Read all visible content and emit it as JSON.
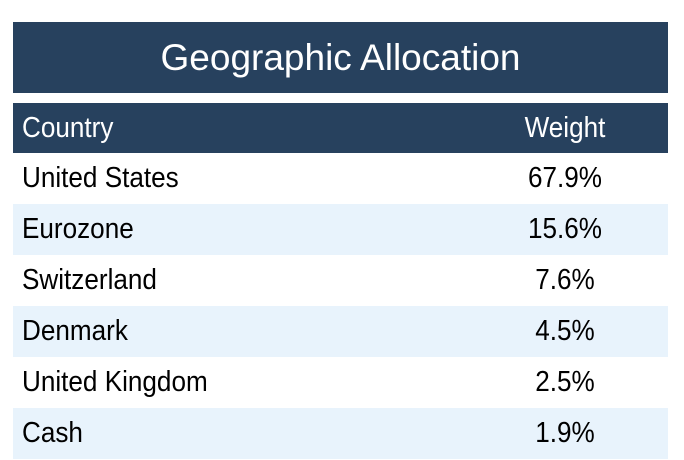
{
  "table": {
    "title": "Geographic Allocation",
    "columns": [
      "Country",
      "Weight"
    ],
    "rows": [
      [
        "United States",
        "67.9%"
      ],
      [
        "Eurozone",
        "15.6%"
      ],
      [
        "Switzerland",
        "7.6%"
      ],
      [
        "Denmark",
        "4.5%"
      ],
      [
        "United Kingdom",
        "2.5%"
      ],
      [
        "Cash",
        "1.9%"
      ]
    ]
  }
}
